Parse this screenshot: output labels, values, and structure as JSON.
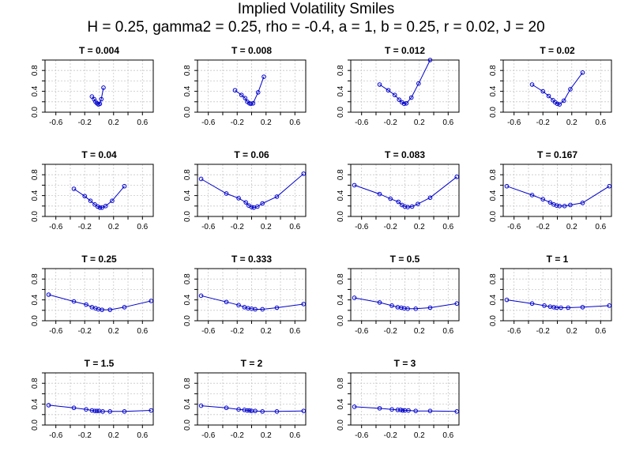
{
  "title": "Implied Volatility Smiles",
  "subtitle": "H = 0.25, gamma2 = 0.25, rho = -0.4, a = 1, b = 0.25, r = 0.02, J = 20",
  "colors": {
    "series": "#0000cc",
    "grid": "#c8c8c8",
    "axis": "#000000"
  },
  "chart_data": [
    {
      "type": "line",
      "title": "T = 0.004",
      "xlabel": "",
      "ylabel": "",
      "xlim": [
        -0.75,
        0.75
      ],
      "ylim": [
        0,
        1
      ],
      "x_ticks": [
        "-0.6",
        "-0.2",
        "0.2",
        "0.6"
      ],
      "y_ticks": [
        "0.0",
        "0.4",
        "0.8"
      ],
      "grid": true,
      "x": [
        -0.1,
        -0.07,
        -0.05,
        -0.03,
        -0.01,
        0.01,
        0.03,
        0.06
      ],
      "y": [
        0.3,
        0.25,
        0.2,
        0.17,
        0.15,
        0.16,
        0.25,
        0.47
      ]
    },
    {
      "type": "line",
      "title": "T = 0.008",
      "xlabel": "",
      "ylabel": "",
      "xlim": [
        -0.75,
        0.75
      ],
      "ylim": [
        0,
        1
      ],
      "x_ticks": [
        "-0.6",
        "-0.2",
        "0.2",
        "0.6"
      ],
      "y_ticks": [
        "0.0",
        "0.4",
        "0.8"
      ],
      "grid": true,
      "x": [
        -0.23,
        -0.14,
        -0.09,
        -0.06,
        -0.03,
        -0.01,
        0.02,
        0.09,
        0.17
      ],
      "y": [
        0.42,
        0.33,
        0.27,
        0.2,
        0.17,
        0.16,
        0.17,
        0.38,
        0.68
      ]
    },
    {
      "type": "line",
      "title": "T = 0.012",
      "xlabel": "",
      "ylabel": "",
      "xlim": [
        -0.75,
        0.75
      ],
      "ylim": [
        0,
        1
      ],
      "x_ticks": [
        "-0.6",
        "-0.2",
        "0.2",
        "0.6"
      ],
      "y_ticks": [
        "0.0",
        "0.4",
        "0.8"
      ],
      "grid": true,
      "x": [
        -0.35,
        -0.23,
        -0.14,
        -0.08,
        -0.04,
        -0.01,
        0.02,
        0.09,
        0.19,
        0.35
      ],
      "y": [
        0.53,
        0.42,
        0.33,
        0.24,
        0.19,
        0.16,
        0.17,
        0.28,
        0.55,
        1.0
      ]
    },
    {
      "type": "line",
      "title": "T = 0.02",
      "xlabel": "",
      "ylabel": "",
      "xlim": [
        -0.75,
        0.75
      ],
      "ylim": [
        0,
        1
      ],
      "x_ticks": [
        "-0.6",
        "-0.2",
        "0.2",
        "0.6"
      ],
      "y_ticks": [
        "0.0",
        "0.4",
        "0.8"
      ],
      "grid": true,
      "x": [
        -0.35,
        -0.2,
        -0.12,
        -0.06,
        -0.03,
        0.0,
        0.03,
        0.09,
        0.18,
        0.35
      ],
      "y": [
        0.53,
        0.4,
        0.31,
        0.23,
        0.19,
        0.16,
        0.15,
        0.22,
        0.44,
        0.76
      ]
    },
    {
      "type": "line",
      "title": "T = 0.04",
      "xlabel": "",
      "ylabel": "",
      "xlim": [
        -0.75,
        0.75
      ],
      "ylim": [
        0,
        1
      ],
      "x_ticks": [
        "-0.6",
        "-0.2",
        "0.2",
        "0.6"
      ],
      "y_ticks": [
        "0.0",
        "0.4",
        "0.8"
      ],
      "grid": true,
      "x": [
        -0.35,
        -0.2,
        -0.12,
        -0.06,
        -0.02,
        0.01,
        0.04,
        0.09,
        0.18,
        0.35
      ],
      "y": [
        0.53,
        0.39,
        0.3,
        0.23,
        0.19,
        0.17,
        0.17,
        0.2,
        0.3,
        0.58
      ]
    },
    {
      "type": "line",
      "title": "T = 0.06",
      "xlabel": "",
      "ylabel": "",
      "xlim": [
        -0.75,
        0.75
      ],
      "ylim": [
        0,
        1
      ],
      "x_ticks": [
        "-0.6",
        "-0.2",
        "0.2",
        "0.6"
      ],
      "y_ticks": [
        "0.0",
        "0.4",
        "0.8"
      ],
      "grid": true,
      "x": [
        -0.7,
        -0.35,
        -0.18,
        -0.08,
        -0.04,
        0.0,
        0.03,
        0.08,
        0.15,
        0.35,
        0.72
      ],
      "y": [
        0.72,
        0.44,
        0.35,
        0.27,
        0.21,
        0.18,
        0.17,
        0.19,
        0.25,
        0.38,
        0.82
      ]
    },
    {
      "type": "line",
      "title": "T = 0.083",
      "xlabel": "",
      "ylabel": "",
      "xlim": [
        -0.75,
        0.75
      ],
      "ylim": [
        0,
        1
      ],
      "x_ticks": [
        "-0.6",
        "-0.2",
        "0.2",
        "0.6"
      ],
      "y_ticks": [
        "0.0",
        "0.4",
        "0.8"
      ],
      "grid": true,
      "x": [
        -0.7,
        -0.35,
        -0.2,
        -0.09,
        -0.04,
        0.0,
        0.04,
        0.1,
        0.18,
        0.35,
        0.72
      ],
      "y": [
        0.6,
        0.43,
        0.34,
        0.28,
        0.22,
        0.19,
        0.18,
        0.19,
        0.24,
        0.36,
        0.76
      ]
    },
    {
      "type": "line",
      "title": "T = 0.167",
      "xlabel": "",
      "ylabel": "",
      "xlim": [
        -0.75,
        0.75
      ],
      "ylim": [
        0,
        1
      ],
      "x_ticks": [
        "-0.6",
        "-0.2",
        "0.2",
        "0.6"
      ],
      "y_ticks": [
        "0.0",
        "0.4",
        "0.8"
      ],
      "grid": true,
      "x": [
        -0.7,
        -0.35,
        -0.2,
        -0.1,
        -0.05,
        -0.01,
        0.03,
        0.1,
        0.18,
        0.35,
        0.72
      ],
      "y": [
        0.58,
        0.41,
        0.33,
        0.27,
        0.23,
        0.21,
        0.2,
        0.2,
        0.22,
        0.26,
        0.58
      ]
    },
    {
      "type": "line",
      "title": "T = 0.25",
      "xlabel": "",
      "ylabel": "",
      "xlim": [
        -0.75,
        0.75
      ],
      "ylim": [
        0,
        1
      ],
      "x_ticks": [
        "-0.6",
        "-0.2",
        "0.2",
        "0.6"
      ],
      "y_ticks": [
        "0.0",
        "0.4",
        "0.8"
      ],
      "grid": true,
      "x": [
        -0.7,
        -0.35,
        -0.18,
        -0.1,
        -0.05,
        -0.01,
        0.04,
        0.15,
        0.35,
        0.72
      ],
      "y": [
        0.5,
        0.37,
        0.31,
        0.26,
        0.24,
        0.22,
        0.21,
        0.21,
        0.26,
        0.38
      ]
    },
    {
      "type": "line",
      "title": "T = 0.333",
      "xlabel": "",
      "ylabel": "",
      "xlim": [
        -0.75,
        0.75
      ],
      "ylim": [
        0,
        1
      ],
      "x_ticks": [
        "-0.6",
        "-0.2",
        "0.2",
        "0.6"
      ],
      "y_ticks": [
        "0.0",
        "0.4",
        "0.8"
      ],
      "grid": true,
      "x": [
        -0.7,
        -0.35,
        -0.18,
        -0.1,
        -0.05,
        0.0,
        0.05,
        0.15,
        0.35,
        0.72
      ],
      "y": [
        0.48,
        0.36,
        0.3,
        0.26,
        0.24,
        0.23,
        0.22,
        0.22,
        0.25,
        0.32
      ]
    },
    {
      "type": "line",
      "title": "T = 0.5",
      "xlabel": "",
      "ylabel": "",
      "xlim": [
        -0.75,
        0.75
      ],
      "ylim": [
        0,
        1
      ],
      "x_ticks": [
        "-0.6",
        "-0.2",
        "0.2",
        "0.6"
      ],
      "y_ticks": [
        "0.0",
        "0.4",
        "0.8"
      ],
      "grid": true,
      "x": [
        -0.7,
        -0.35,
        -0.18,
        -0.1,
        -0.05,
        -0.01,
        0.04,
        0.15,
        0.35,
        0.72
      ],
      "y": [
        0.44,
        0.35,
        0.29,
        0.26,
        0.25,
        0.24,
        0.23,
        0.23,
        0.25,
        0.33
      ]
    },
    {
      "type": "line",
      "title": "T = 1",
      "xlabel": "",
      "ylabel": "",
      "xlim": [
        -0.75,
        0.75
      ],
      "ylim": [
        0,
        1
      ],
      "x_ticks": [
        "-0.6",
        "-0.2",
        "0.2",
        "0.6"
      ],
      "y_ticks": [
        "0.0",
        "0.4",
        "0.8"
      ],
      "grid": true,
      "x": [
        -0.7,
        -0.35,
        -0.18,
        -0.1,
        -0.05,
        -0.01,
        0.05,
        0.15,
        0.35,
        0.72
      ],
      "y": [
        0.4,
        0.33,
        0.29,
        0.27,
        0.26,
        0.25,
        0.25,
        0.25,
        0.26,
        0.29
      ]
    },
    {
      "type": "line",
      "title": "T = 1.5",
      "xlabel": "",
      "ylabel": "",
      "xlim": [
        -0.75,
        0.75
      ],
      "ylim": [
        0,
        1
      ],
      "x_ticks": [
        "-0.6",
        "-0.2",
        "0.2",
        "0.6"
      ],
      "y_ticks": [
        "0.0",
        "0.4",
        "0.8"
      ],
      "grid": true,
      "x": [
        -0.7,
        -0.35,
        -0.18,
        -0.1,
        -0.06,
        -0.03,
        0.0,
        0.05,
        0.15,
        0.35,
        0.72
      ],
      "y": [
        0.38,
        0.33,
        0.3,
        0.28,
        0.27,
        0.27,
        0.27,
        0.26,
        0.26,
        0.26,
        0.28
      ]
    },
    {
      "type": "line",
      "title": "T = 2",
      "xlabel": "",
      "ylabel": "",
      "xlim": [
        -0.75,
        0.75
      ],
      "ylim": [
        0,
        1
      ],
      "x_ticks": [
        "-0.6",
        "-0.2",
        "0.2",
        "0.6"
      ],
      "y_ticks": [
        "0.0",
        "0.4",
        "0.8"
      ],
      "grid": true,
      "x": [
        -0.7,
        -0.35,
        -0.18,
        -0.1,
        -0.06,
        -0.03,
        0.0,
        0.05,
        0.15,
        0.35,
        0.72
      ],
      "y": [
        0.37,
        0.33,
        0.3,
        0.29,
        0.28,
        0.28,
        0.27,
        0.27,
        0.26,
        0.26,
        0.27
      ]
    },
    {
      "type": "line",
      "title": "T = 3",
      "xlabel": "",
      "ylabel": "",
      "xlim": [
        -0.75,
        0.75
      ],
      "ylim": [
        0,
        1
      ],
      "x_ticks": [
        "-0.6",
        "-0.2",
        "0.2",
        "0.6"
      ],
      "y_ticks": [
        "0.0",
        "0.4",
        "0.8"
      ],
      "grid": true,
      "x": [
        -0.7,
        -0.35,
        -0.18,
        -0.1,
        -0.06,
        -0.03,
        0.0,
        0.05,
        0.15,
        0.35,
        0.72
      ],
      "y": [
        0.35,
        0.32,
        0.3,
        0.29,
        0.29,
        0.28,
        0.28,
        0.28,
        0.27,
        0.27,
        0.26
      ]
    }
  ]
}
